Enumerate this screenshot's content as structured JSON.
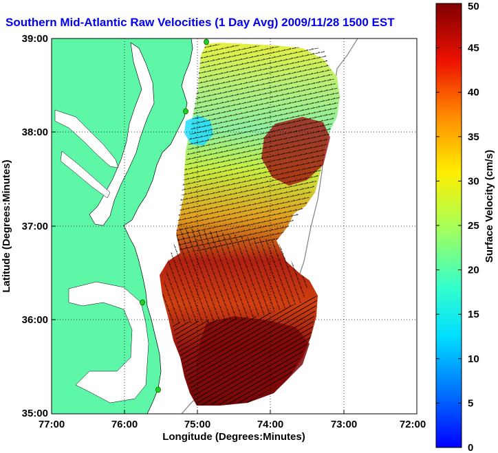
{
  "title": "Southern Mid-Atlantic Raw Velocities (1 Day Avg) 2009/11/28 1500 EST",
  "map": {
    "xlabel": "Longitude (Degrees:Minutes)",
    "ylabel": "Latitude (Degrees:Minutes)",
    "xticks": [
      "77:00",
      "76:00",
      "75:00",
      "74:00",
      "73:00",
      "72:00"
    ],
    "yticks": [
      "39:00",
      "38:00",
      "37:00",
      "36:00",
      "35:00"
    ],
    "grid": "dotted",
    "land_color": "#5ef7a8",
    "vector_color": "#000000",
    "station_color": "#22cc22"
  },
  "colorbar": {
    "label": "Surface Velocity (cm/s)",
    "ticks": [
      "0",
      "5",
      "10",
      "15",
      "20",
      "25",
      "30",
      "35",
      "40",
      "45",
      "50"
    ],
    "range": [
      0,
      50
    ],
    "colormap": "jet"
  }
}
